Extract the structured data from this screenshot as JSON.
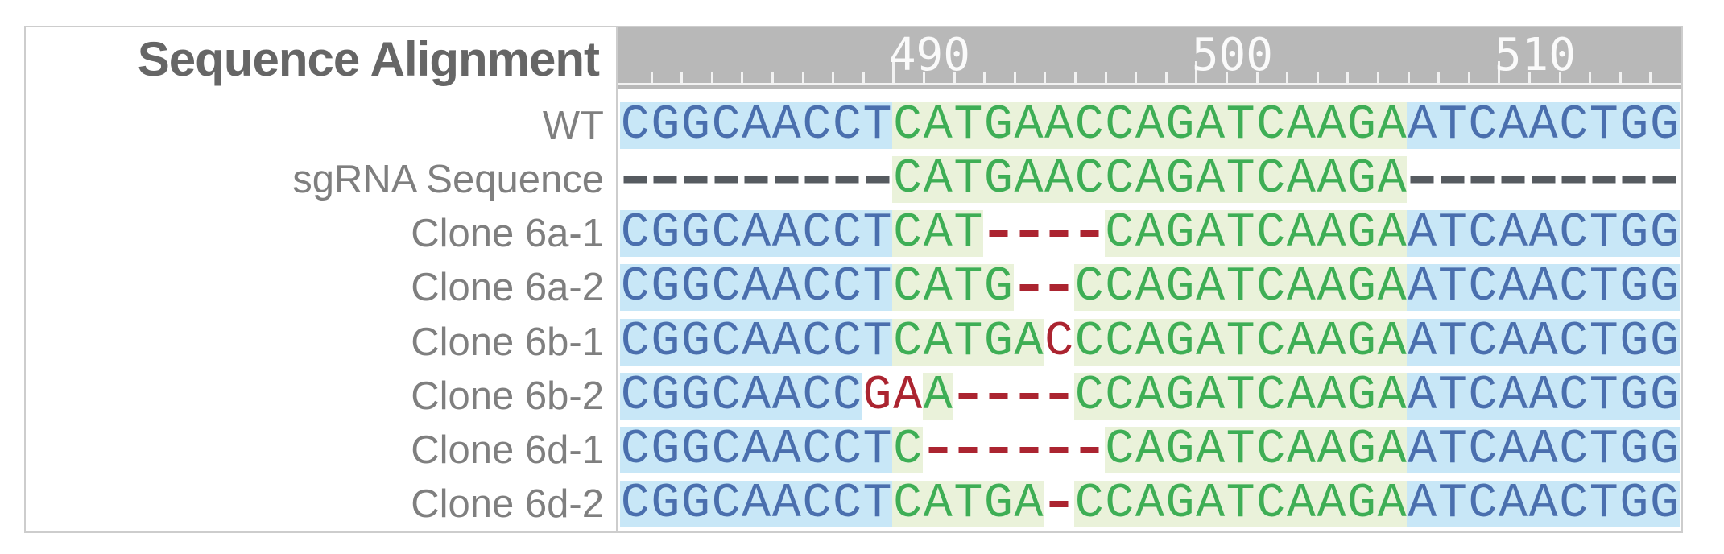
{
  "title": "Sequence Alignment",
  "ruler": {
    "labels": [
      {
        "text": "490",
        "boundary_col": 9
      },
      {
        "text": "500",
        "boundary_col": 19
      },
      {
        "text": "510",
        "boundary_col": 29
      }
    ],
    "columns": 35
  },
  "colors": {
    "blue_text": "#4a6fae",
    "blue_bg": "#c8e7f7",
    "green_text": "#3eae55",
    "green_bg": "#eaf2da",
    "red": "#ab2430",
    "gray_dash": "#565b60",
    "ruler_bg": "#b8b8b8",
    "ruler_text": "#fafafa",
    "tick": "#f2f2f2",
    "label_text": "#7f7f7f",
    "title_text": "#666666",
    "border": "#cdcdcd"
  },
  "rows": [
    {
      "label": "WT",
      "segments": [
        {
          "text": "CGGCAACCT",
          "style": "blue"
        },
        {
          "text": "CATGAACCAGATCAAGA",
          "style": "green"
        },
        {
          "text": "ATCAACTGG",
          "style": "blue"
        }
      ]
    },
    {
      "label": "sgRNA Sequence",
      "segments": [
        {
          "text": "---------",
          "style": "gray"
        },
        {
          "text": "CATGAACCAGATCAAGA",
          "style": "green"
        },
        {
          "text": "---------",
          "style": "gray"
        }
      ]
    },
    {
      "label": "Clone 6a-1",
      "segments": [
        {
          "text": "CGGCAACCT",
          "style": "blue"
        },
        {
          "text": "CAT",
          "style": "green"
        },
        {
          "text": "----",
          "style": "red"
        },
        {
          "text": "CAGATCAAGA",
          "style": "green"
        },
        {
          "text": "ATCAACTGG",
          "style": "blue"
        }
      ]
    },
    {
      "label": "Clone 6a-2",
      "segments": [
        {
          "text": "CGGCAACCT",
          "style": "blue"
        },
        {
          "text": "CATG",
          "style": "green"
        },
        {
          "text": "--",
          "style": "red"
        },
        {
          "text": "CCAGATCAAGA",
          "style": "green"
        },
        {
          "text": "ATCAACTGG",
          "style": "blue"
        }
      ]
    },
    {
      "label": "Clone 6b-1",
      "segments": [
        {
          "text": "CGGCAACCT",
          "style": "blue"
        },
        {
          "text": "CATGA",
          "style": "green"
        },
        {
          "text": "C",
          "style": "red"
        },
        {
          "text": "CCAGATCAAGA",
          "style": "green"
        },
        {
          "text": "ATCAACTGG",
          "style": "blue"
        }
      ]
    },
    {
      "label": "Clone 6b-2",
      "segments": [
        {
          "text": "CGGCAACC",
          "style": "blue"
        },
        {
          "text": "GA",
          "style": "red"
        },
        {
          "text": "A",
          "style": "green"
        },
        {
          "text": "----",
          "style": "red"
        },
        {
          "text": "CCAGATCAAGA",
          "style": "green"
        },
        {
          "text": "ATCAACTGG",
          "style": "blue"
        }
      ]
    },
    {
      "label": "Clone 6d-1",
      "segments": [
        {
          "text": "CGGCAACCT",
          "style": "blue"
        },
        {
          "text": "C",
          "style": "green"
        },
        {
          "text": "------",
          "style": "red"
        },
        {
          "text": "CAGATCAAGA",
          "style": "green"
        },
        {
          "text": "ATCAACTGG",
          "style": "blue"
        }
      ]
    },
    {
      "label": "Clone 6d-2",
      "segments": [
        {
          "text": "CGGCAACCT",
          "style": "blue"
        },
        {
          "text": "CATGA",
          "style": "green"
        },
        {
          "text": "-",
          "style": "red"
        },
        {
          "text": "CCAGATCAAGA",
          "style": "green"
        },
        {
          "text": "ATCAACTGG",
          "style": "blue"
        }
      ]
    }
  ]
}
